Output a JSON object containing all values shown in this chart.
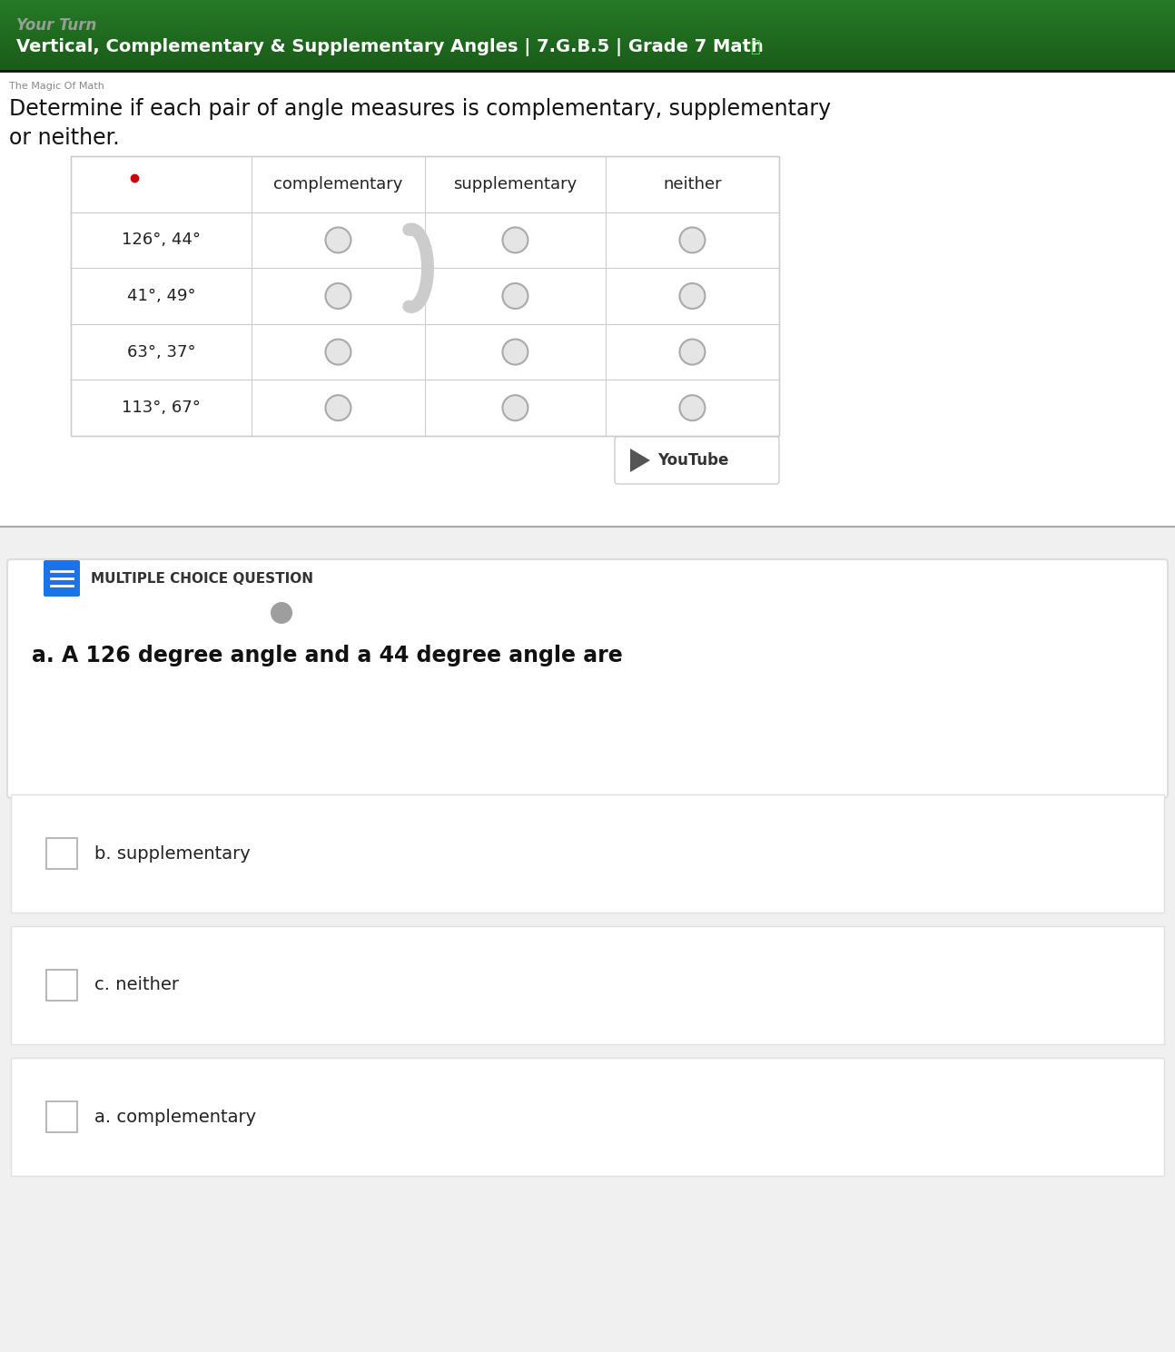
{
  "title": "Vertical, Complementary & Supplementary Angles | 7.G.B.5 | Grade 7 Math",
  "subtitle_overlay": "Your Turn",
  "subtitle_small": "The Magic Of Math",
  "header_text_color": "#ffffff",
  "heart_emoji": "💚",
  "instruction": "Determine if each pair of angle measures is complementary, supplementary\nor neither.",
  "instruction_fontsize": 17,
  "table_headers": [
    "",
    "complementary",
    "supplementary",
    "neither"
  ],
  "table_rows": [
    "126°, 44°",
    "41°, 49°",
    "63°, 37°",
    "113°, 67°"
  ],
  "red_dot_color": "#cc0000",
  "arrow_color": "#cccccc",
  "mcq_icon_color": "#1a73e8",
  "mcq_label": "MULTIPLE CHOICE QUESTION",
  "mcq_label_color": "#333333",
  "mcq_label_fontsize": 11,
  "gray_circle_color": "#9e9e9e",
  "question_text": "a. A 126 degree angle and a 44 degree angle are",
  "question_fontsize": 17,
  "answer_choices": [
    {
      "label": "b. supplementary",
      "fontsize": 14
    },
    {
      "label": "c. neither",
      "fontsize": 14
    },
    {
      "label": "a. complementary",
      "fontsize": 14
    }
  ],
  "bg_color": "#f0f0f0",
  "top_section_bg": "#ffffff",
  "divider_color": "#888888"
}
